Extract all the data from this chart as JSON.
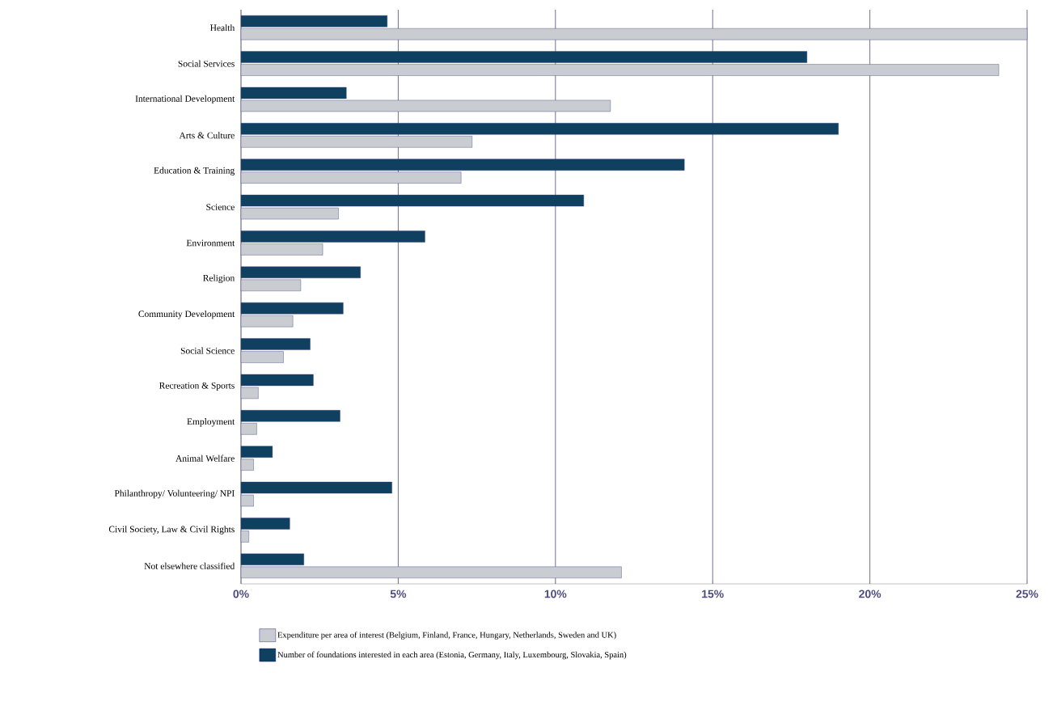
{
  "chart_data": {
    "type": "bar",
    "orientation": "horizontal",
    "categories": [
      "Health",
      "Social Services",
      "International Development",
      "Arts & Culture",
      "Education & Training",
      "Science",
      "Environment",
      "Religion",
      "Community Development",
      "Social Science",
      "Recreation & Sports",
      "Employment",
      "Animal Welfare",
      "Philanthropy/ Volunteering/ NPI",
      "Civil Society, Law & Civil Rights",
      "Not elsewhere classified"
    ],
    "series": [
      {
        "name": "Expenditure per area of interest (Belgium, Finland, France, Hungary, Netherlands, Sweden and UK)",
        "color": "#c9cdd1",
        "values": [
          25.0,
          24.1,
          11.75,
          7.35,
          7.0,
          3.1,
          2.6,
          1.9,
          1.65,
          1.35,
          0.55,
          0.5,
          0.4,
          0.4,
          0.25,
          12.1
        ]
      },
      {
        "name": "Number of foundations interested in each area (Estonia, Germany, Italy, Luxembourg, Slovakia, Spain)",
        "color": "#0f4060",
        "values": [
          4.65,
          18.0,
          3.35,
          19.0,
          14.1,
          10.9,
          5.85,
          3.8,
          3.25,
          2.2,
          2.3,
          3.15,
          1.0,
          4.8,
          1.55,
          2.0
        ]
      }
    ],
    "xlim": [
      0,
      25
    ],
    "xticks": [
      {
        "value": 0,
        "label": "0%"
      },
      {
        "value": 5,
        "label": "5%"
      },
      {
        "value": 10,
        "label": "10%"
      },
      {
        "value": 15,
        "label": "15%"
      },
      {
        "value": 20,
        "label": "20%"
      },
      {
        "value": 25,
        "label": "25%"
      }
    ],
    "grid": "x",
    "legend": "bottom"
  }
}
